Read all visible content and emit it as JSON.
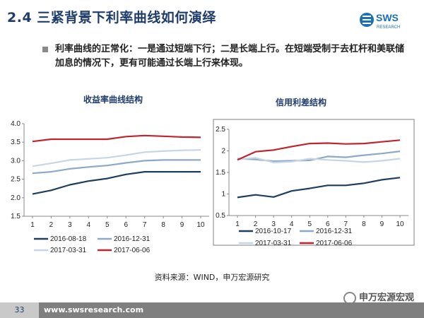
{
  "header": {
    "title": "2.4 三紧背景下利率曲线如何演绎",
    "logo_text": "SWS",
    "logo_sub": "RESEARCH",
    "brand_color": "#1b6fb5"
  },
  "bullet": {
    "text": "利率曲线的正常化：一是通过短端下行；二是长端上行。在短端受制于去杠杆和美联储加息的情况下，更有可能通过长端上行来体现。"
  },
  "chart_data": [
    {
      "type": "line",
      "title": "收益率曲线结构",
      "x": [
        1,
        2,
        3,
        4,
        5,
        6,
        7,
        8,
        9,
        10
      ],
      "ylim": [
        1.5,
        4.0
      ],
      "yticks": [
        "1.5",
        "2.0",
        "2.5",
        "3.0",
        "3.5",
        "4.0"
      ],
      "xlabel": "",
      "ylabel": "",
      "series": [
        {
          "name": "2016-08-18",
          "color": "#1f3d5c",
          "values": [
            2.1,
            2.2,
            2.35,
            2.45,
            2.52,
            2.63,
            2.7,
            2.7,
            2.7,
            2.7
          ]
        },
        {
          "name": "2016-12-31",
          "color": "#8ea9c8",
          "values": [
            2.66,
            2.7,
            2.78,
            2.83,
            2.87,
            2.94,
            3.0,
            3.02,
            3.02,
            3.02
          ]
        },
        {
          "name": "2017-03-31",
          "color": "#c8d5e6",
          "values": [
            2.85,
            2.93,
            3.02,
            3.05,
            3.08,
            3.15,
            3.23,
            3.26,
            3.28,
            3.29
          ]
        },
        {
          "name": "2017-06-06",
          "color": "#c0242c",
          "values": [
            3.52,
            3.58,
            3.58,
            3.58,
            3.58,
            3.65,
            3.68,
            3.66,
            3.64,
            3.63
          ]
        }
      ]
    },
    {
      "type": "line",
      "title": "信用利差结构",
      "x": [
        1,
        2,
        3,
        4,
        5,
        6,
        7,
        8,
        9,
        10
      ],
      "ylim": [
        0.5,
        2.5
      ],
      "yticks": [
        "0.5",
        "1",
        "1.5",
        "2",
        "2.5"
      ],
      "xlabel": "",
      "ylabel": "",
      "series": [
        {
          "name": "2016-10-17",
          "color": "#1f3d5c",
          "values": [
            0.92,
            0.98,
            0.93,
            1.07,
            1.13,
            1.2,
            1.2,
            1.25,
            1.33,
            1.38
          ]
        },
        {
          "name": "2016-12-31",
          "color": "#8ea9c8",
          "values": [
            1.82,
            1.8,
            1.76,
            1.77,
            1.78,
            1.87,
            1.85,
            1.9,
            1.94,
            1.99
          ]
        },
        {
          "name": "2017-03-31",
          "color": "#c8d5e6",
          "values": [
            1.8,
            1.84,
            1.73,
            1.75,
            1.82,
            1.79,
            1.77,
            1.74,
            1.77,
            1.82
          ]
        },
        {
          "name": "2017-06-06",
          "color": "#c0242c",
          "values": [
            1.79,
            1.98,
            2.02,
            2.1,
            2.17,
            2.18,
            2.16,
            2.17,
            2.21,
            2.25
          ]
        }
      ]
    }
  ],
  "source": "资料来源：WIND，申万宏源研究",
  "footer": {
    "page": "33",
    "url": "www.swsresearch.com",
    "watermark": "申万宏源宏观"
  }
}
